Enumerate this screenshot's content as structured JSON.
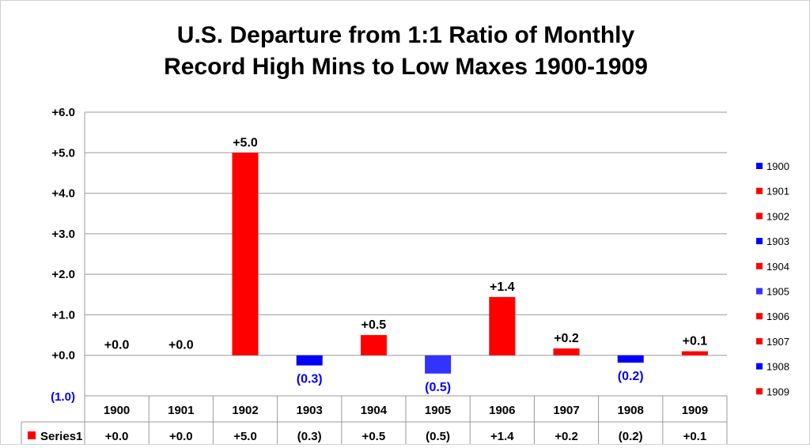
{
  "chart_data": {
    "type": "bar",
    "title": [
      "U.S. Departure from 1:1 Ratio of Monthly",
      "Record High Mins to Low Maxes 1900-1909"
    ],
    "categories": [
      "1900",
      "1901",
      "1902",
      "1903",
      "1904",
      "1905",
      "1906",
      "1907",
      "1908",
      "1909"
    ],
    "series": [
      {
        "name": "Series1",
        "values": [
          0.0,
          0.0,
          5.0,
          -0.25,
          0.5,
          -0.45,
          1.44,
          0.17,
          -0.18,
          0.1
        ],
        "labels": [
          "+0.0",
          "+0.0",
          "+5.0",
          "(0.3)",
          "+0.5",
          "(0.5)",
          "+1.4",
          "+0.2",
          "(0.2)",
          "+0.1"
        ]
      }
    ],
    "ylim": [
      -1.0,
      6.0
    ],
    "yticks": [
      6.0,
      5.0,
      4.0,
      3.0,
      2.0,
      1.0,
      0.0,
      -1.0
    ],
    "ytick_labels": [
      "+6.0",
      "+5.0",
      "+4.0",
      "+3.0",
      "+2.0",
      "+1.0",
      "+0.0",
      "(1.0)"
    ],
    "grid": true,
    "data_table": true,
    "legend_position": "right",
    "colors": {
      "positive": "#ff0000",
      "negative": "#0000ff",
      "negative_light": "#3333ff",
      "label_negative": "#0000ff",
      "label_positive": "#000000",
      "grid": "#999999"
    },
    "bar_colors": [
      "#0000ff",
      "#ff0000",
      "#ff0000",
      "#0000ff",
      "#ff0000",
      "#3333ff",
      "#ff0000",
      "#ff0000",
      "#0000ff",
      "#ff0000"
    ]
  }
}
